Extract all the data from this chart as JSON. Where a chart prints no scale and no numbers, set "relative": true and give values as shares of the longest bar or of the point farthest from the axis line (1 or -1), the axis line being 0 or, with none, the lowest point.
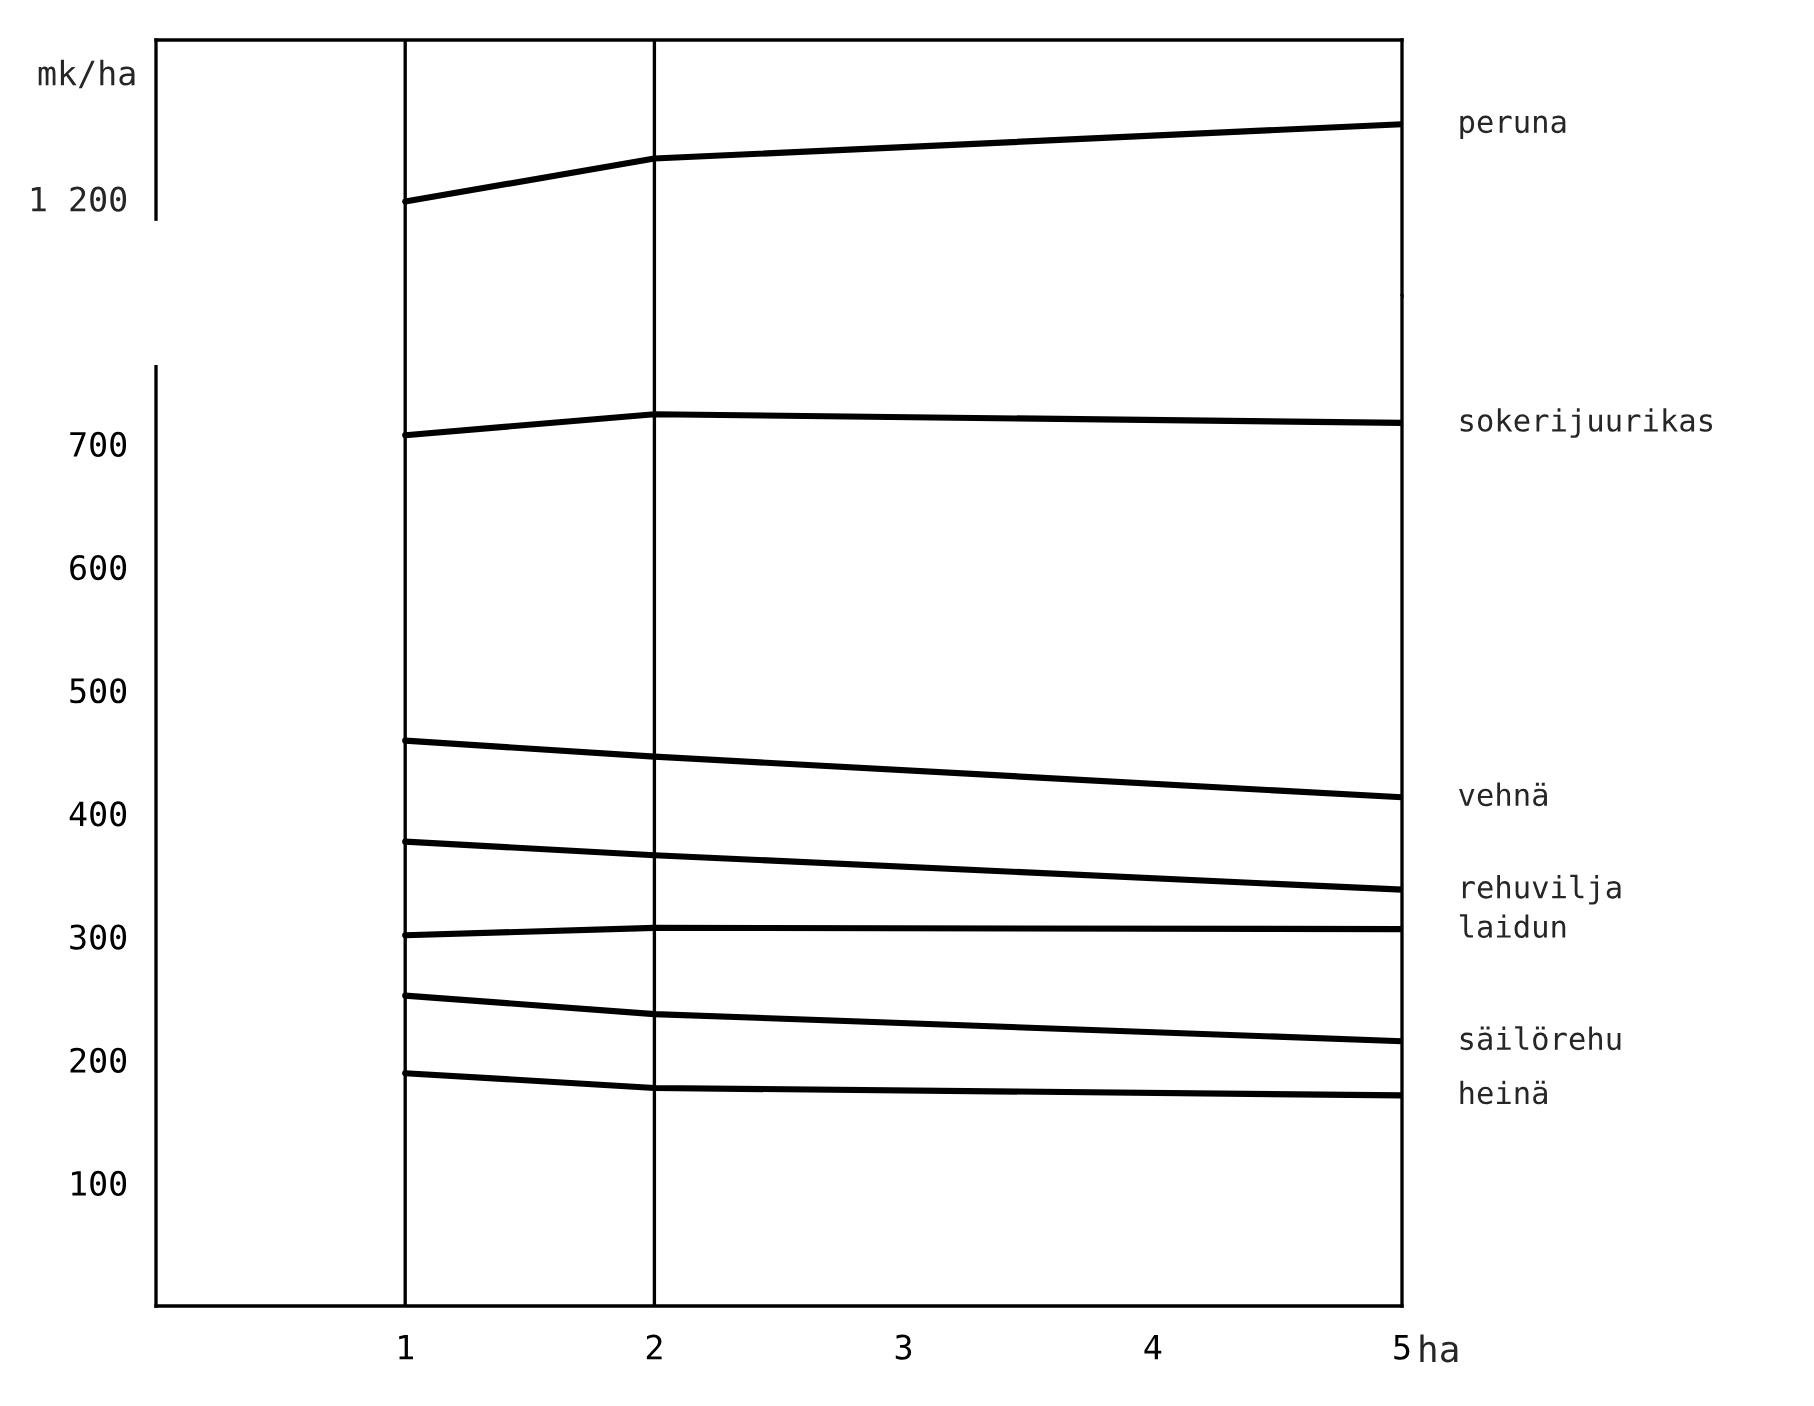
{
  "chart_data": [
    {
      "type": "line",
      "relative": true,
      "xlim": [
        0,
        5
      ],
      "xticks": [
        1,
        2,
        3,
        4,
        5
      ],
      "annotations": [
        "1 200"
      ],
      "ylabel": "mk/ha",
      "tick_labels": false,
      "ref_lines": [
        {
          "axis": "x",
          "value": 1
        },
        {
          "axis": "x",
          "value": 2
        }
      ],
      "x": [
        1,
        2,
        5
      ],
      "series": [
        {
          "name": "peruna",
          "color": "#000000",
          "values": [
            0.55,
            0.8,
            1
          ]
        }
      ]
    },
    {
      "type": "line",
      "xlim": [
        0,
        5
      ],
      "xticks": [
        1,
        2,
        3,
        4,
        5
      ],
      "ylim": [
        0,
        820
      ],
      "yticks": [
        100,
        200,
        300,
        400,
        500,
        600,
        700
      ],
      "xlabel": "ha",
      "ref_lines": [
        {
          "axis": "x",
          "value": 1
        },
        {
          "axis": "x",
          "value": 2
        }
      ],
      "x": [
        1,
        2,
        5
      ],
      "series": [
        {
          "name": "sokerijuurikas",
          "color": "#000000",
          "values": [
            707,
            724,
            717
          ]
        },
        {
          "name": "vehnä",
          "color": "#000000",
          "values": [
            459,
            446,
            413
          ]
        },
        {
          "name": "rehuvilja",
          "color": "#000000",
          "values": [
            377,
            366,
            338
          ]
        },
        {
          "name": "laidun",
          "color": "#000000",
          "values": [
            301,
            307,
            306
          ]
        },
        {
          "name": "säilörehu",
          "color": "#000000",
          "values": [
            252,
            237,
            215
          ]
        },
        {
          "name": "heinä",
          "color": "#000000",
          "values": [
            189,
            177,
            171
          ]
        }
      ]
    }
  ]
}
